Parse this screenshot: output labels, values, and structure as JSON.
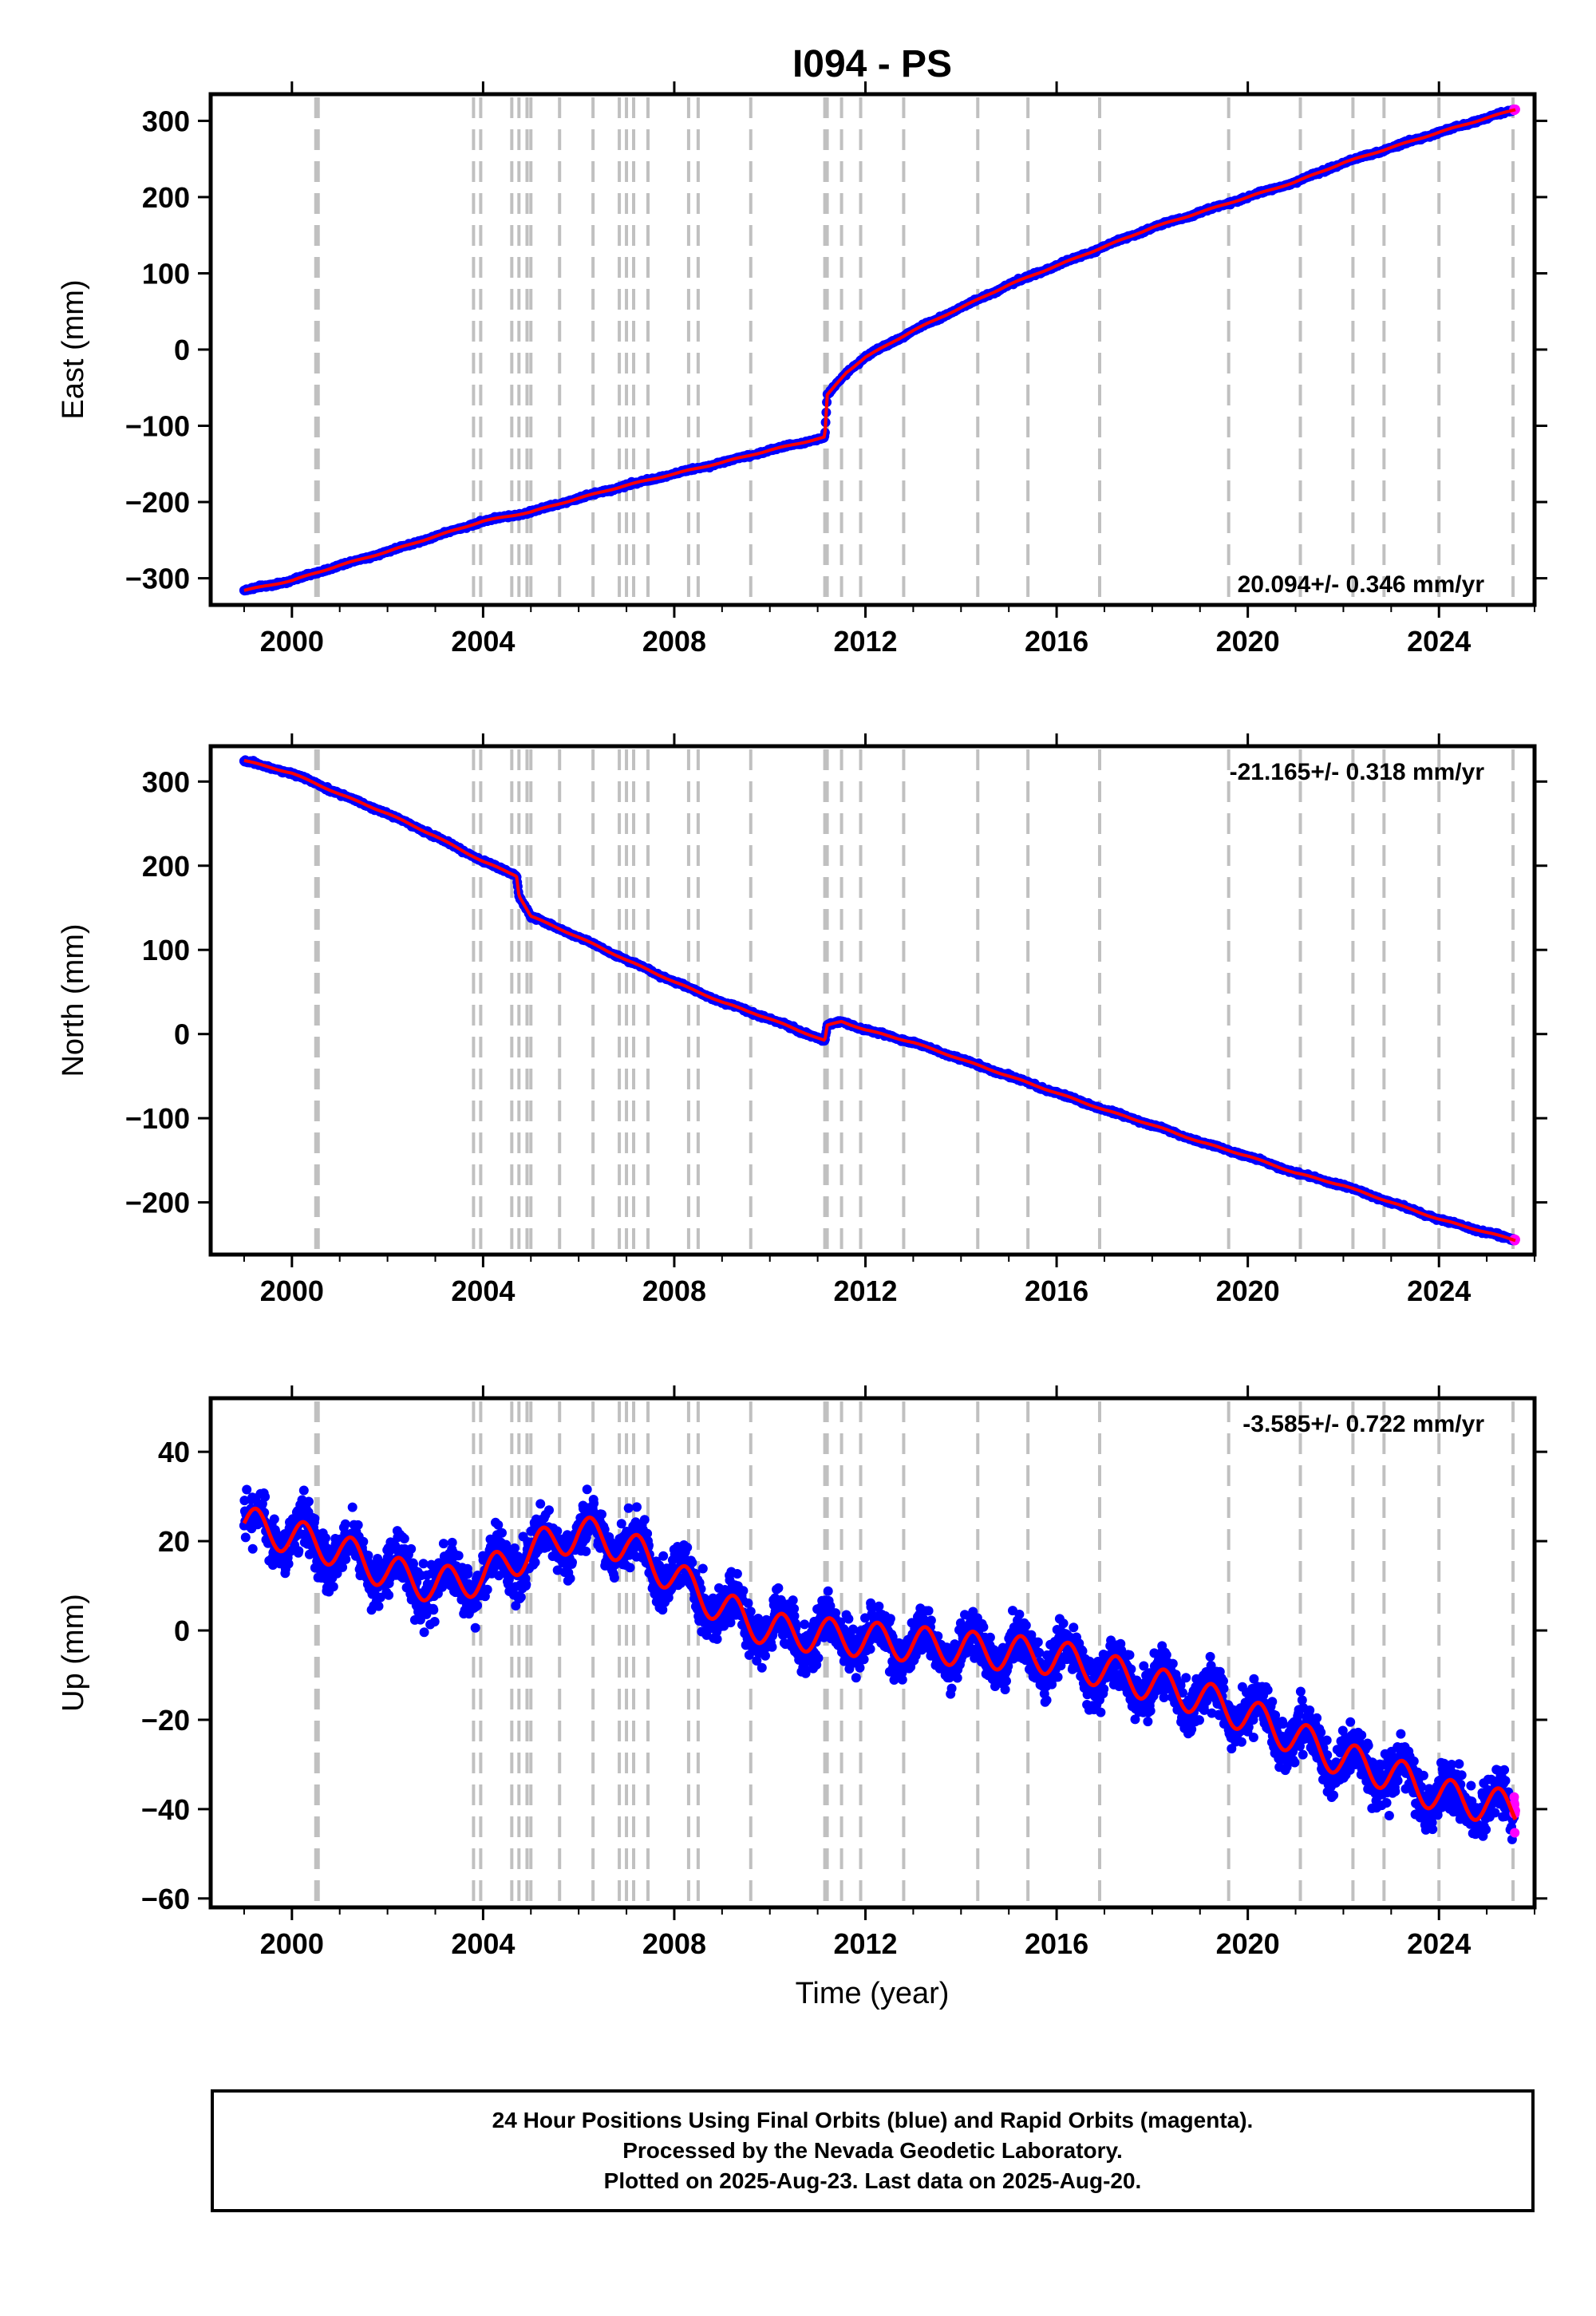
{
  "figure": {
    "title": "I094 - PS",
    "xlabel": "Time (year)",
    "caption": [
      "24 Hour Positions Using Final Orbits (blue) and Rapid Orbits (magenta).",
      "Processed by the Nevada Geodetic Laboratory.",
      "Plotted on 2025-Aug-23. Last data on 2025-Aug-20."
    ]
  },
  "colors": {
    "final": "#0000ff",
    "rapid": "#ff00ff",
    "model": "#ff0000",
    "steps": "#c0c0c0"
  },
  "steps_years": [
    2000.5,
    2000.55,
    2003.8,
    2003.95,
    2004.6,
    2004.75,
    2004.92,
    2005.0,
    2005.6,
    2006.3,
    2006.85,
    2007.0,
    2007.15,
    2007.45,
    2008.3,
    2008.5,
    2009.6,
    2011.15,
    2011.2,
    2011.5,
    2011.9,
    2012.8,
    2014.35,
    2015.4,
    2016.9,
    2019.6,
    2021.1,
    2022.2,
    2022.85,
    2024.0,
    2025.55
  ],
  "chart_data": [
    {
      "type": "scatter",
      "component": "east",
      "ylabel": "East (mm)",
      "xlim": [
        1998.3,
        2026.0
      ],
      "ylim": [
        -335,
        335
      ],
      "xticks": [
        "2000",
        "2004",
        "2008",
        "2012",
        "2016",
        "2020",
        "2024"
      ],
      "yticks": [
        "−300",
        "−200",
        "−100",
        "0",
        "100",
        "200",
        "300"
      ],
      "rate_label": "20.094+/- 0.346 mm/yr",
      "rate_position": "bottom-right",
      "series": [
        {
          "x": [
            1999.0,
            2000.0,
            2001.0,
            2002.0,
            2003.0,
            2004.0,
            2005.0,
            2006.0,
            2007.0,
            2008.0,
            2009.0,
            2010.0,
            2011.15,
            2011.2,
            2011.4,
            2011.6,
            2012.0,
            2013.0,
            2014.0,
            2015.0,
            2016.0,
            2017.0,
            2018.0,
            2019.0,
            2020.0,
            2021.0,
            2022.0,
            2023.0,
            2024.0,
            2025.6
          ],
          "y": [
            -316,
            -303,
            -283,
            -265,
            -245,
            -225,
            -213,
            -195,
            -178,
            -163,
            -148,
            -132,
            -115,
            -60,
            -45,
            -30,
            -10,
            25,
            55,
            85,
            110,
            135,
            160,
            180,
            200,
            220,
            245,
            265,
            285,
            315
          ]
        }
      ]
    },
    {
      "type": "scatter",
      "component": "north",
      "ylabel": "North (mm)",
      "xlim": [
        1998.3,
        2026.0
      ],
      "ylim": [
        -262,
        342
      ],
      "xticks": [
        "2000",
        "2004",
        "2008",
        "2012",
        "2016",
        "2020",
        "2024"
      ],
      "yticks": [
        "−200",
        "−100",
        "0",
        "100",
        "200",
        "300"
      ],
      "rate_label": "-21.165+/- 0.318 mm/yr",
      "rate_position": "top-right",
      "series": [
        {
          "x": [
            1999.0,
            2000.0,
            2001.0,
            2002.0,
            2003.0,
            2004.0,
            2004.7,
            2004.75,
            2005.0,
            2006.0,
            2007.0,
            2008.0,
            2009.0,
            2010.0,
            2011.15,
            2011.2,
            2011.5,
            2012.0,
            2013.0,
            2014.0,
            2015.0,
            2016.0,
            2017.0,
            2018.0,
            2019.0,
            2020.0,
            2021.0,
            2022.0,
            2023.0,
            2024.0,
            2025.6
          ],
          "y": [
            325,
            310,
            285,
            262,
            235,
            205,
            188,
            165,
            140,
            115,
            88,
            62,
            38,
            18,
            -8,
            10,
            15,
            5,
            -10,
            -30,
            -50,
            -70,
            -90,
            -108,
            -128,
            -145,
            -165,
            -180,
            -200,
            -220,
            -245
          ]
        }
      ]
    },
    {
      "type": "scatter",
      "component": "up",
      "ylabel": "Up (mm)",
      "xlim": [
        1998.3,
        2026.0
      ],
      "ylim": [
        -62,
        52
      ],
      "xticks": [
        "2000",
        "2004",
        "2008",
        "2012",
        "2016",
        "2020",
        "2024"
      ],
      "yticks": [
        "40",
        "20",
        "0",
        "−20",
        "−40",
        "−60"
      ],
      "rate_label": "-3.585+/- 0.722 mm/yr",
      "rate_position": "top-right",
      "series": [
        {
          "x": [
            1999.0,
            2000.0,
            2001.0,
            2002.0,
            2003.0,
            2004.0,
            2005.0,
            2006.0,
            2007.0,
            2008.0,
            2009.0,
            2010.0,
            2011.0,
            2012.0,
            2013.0,
            2014.0,
            2015.0,
            2016.0,
            2017.0,
            2018.0,
            2019.0,
            2020.0,
            2021.0,
            2022.0,
            2023.0,
            2024.0,
            2025.6
          ],
          "y": [
            24,
            21,
            18,
            13,
            10,
            12,
            18,
            22,
            19,
            12,
            5,
            0,
            -1,
            -2,
            -3,
            -4,
            -5,
            -6,
            -9,
            -12,
            -15,
            -19,
            -24,
            -29,
            -32,
            -37,
            -40
          ]
        }
      ]
    }
  ]
}
